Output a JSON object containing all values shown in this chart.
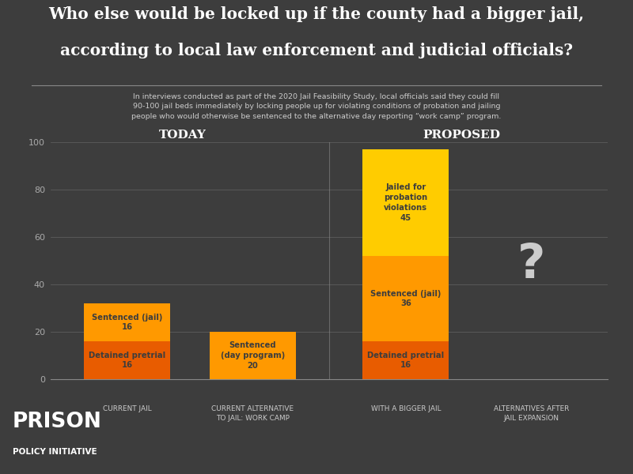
{
  "title_line1": "Who else would be locked up if the county had a bigger jail,",
  "title_line2": "according to local law enforcement and judicial officials?",
  "subtitle": "In interviews conducted as part of the 2020 Jail Feasibility Study, local officials said they could fill\n90-100 jail beds immediately by locking people up for violating conditions of probation and jailing\npeople who would otherwise be sentenced to the alternative day reporting “work camp” program.",
  "bg_color": "#3d3d3d",
  "text_color": "#ffffff",
  "section_today": "Today",
  "section_proposed": "Proposed",
  "bar_labels": [
    "Current jail",
    "Current alternative\nto jail: Work Camp",
    "With a bigger jail",
    "Alternatives after\njail expansion"
  ],
  "bars": [
    {
      "segments": [
        {
          "label": "Detained pretrial",
          "value": 16,
          "color": "#e85c00"
        },
        {
          "label": "Sentenced (jail)",
          "value": 16,
          "color": "#ff9900"
        }
      ]
    },
    {
      "segments": [
        {
          "label": "Sentenced\n(day program)",
          "value": 20,
          "color": "#ff9900"
        }
      ]
    },
    {
      "segments": [
        {
          "label": "Detained pretrial",
          "value": 16,
          "color": "#e85c00"
        },
        {
          "label": "Sentenced (jail)",
          "value": 36,
          "color": "#ff9900"
        },
        {
          "label": "Jailed for\nprobation\nviolations",
          "value": 45,
          "color": "#ffcc00"
        }
      ]
    },
    {
      "segments": []
    }
  ],
  "ylim": [
    0,
    100
  ],
  "yticks": [
    0,
    20,
    40,
    60,
    80,
    100
  ],
  "question_mark": "?",
  "prison_policy_text1": "PRISON",
  "prison_policy_text2": "POLICY INITIATIVE"
}
